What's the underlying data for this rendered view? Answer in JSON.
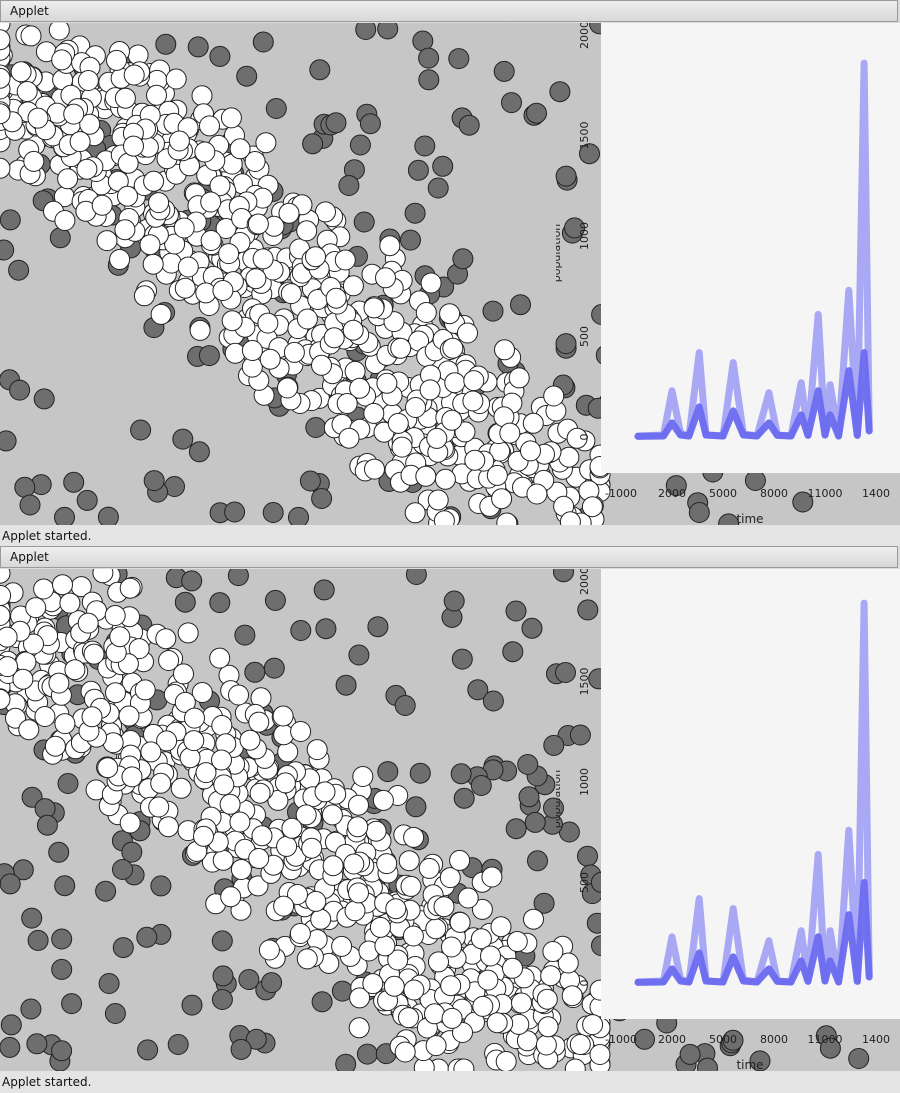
{
  "applets": [
    {
      "title": "Applet",
      "status": "Applet started.",
      "plot": {
        "xlabel": "time",
        "ylabel": "population",
        "x_ticks": [
          "-1000",
          "2000",
          "5000",
          "8000",
          "11000",
          "1400"
        ],
        "y_ticks": [
          "0",
          "500",
          "1000",
          "1500",
          "2000"
        ]
      }
    },
    {
      "title": "Applet",
      "status": "Applet started.",
      "plot": {
        "xlabel": "time",
        "ylabel": "population",
        "x_ticks": [
          "-1000",
          "2000",
          "5000",
          "8000",
          "11000",
          "1400"
        ],
        "y_ticks": [
          "0",
          "500",
          "1000",
          "1500",
          "2000"
        ]
      }
    }
  ],
  "colors": {
    "prey": "#ffffff",
    "predator": "#6e6e6e",
    "prey_series": "#9a9af5",
    "predator_series": "#6a6af0",
    "field": "#c6c6c6",
    "plot_bg": "#f5f5f5"
  },
  "chart_data": [
    {
      "type": "line",
      "xlabel": "time",
      "ylabel": "population",
      "xlim": [
        -1000,
        14000
      ],
      "ylim": [
        0,
        2000
      ],
      "series": [
        {
          "x": [
            0,
            1500,
            2000,
            2500,
            3000,
            3600,
            4000,
            5000,
            5600,
            6200,
            7000,
            7700,
            8200,
            9000,
            9600,
            10000,
            10600,
            11000,
            11300,
            11800,
            12400,
            12900,
            13300,
            13600
          ],
          "values": [
            5,
            10,
            230,
            20,
            5,
            420,
            10,
            5,
            370,
            15,
            5,
            220,
            10,
            5,
            270,
            10,
            610,
            10,
            260,
            5,
            730,
            10,
            1860,
            40
          ]
        },
        {
          "x": [
            0,
            1500,
            2000,
            2500,
            3000,
            3600,
            4000,
            5000,
            5600,
            6200,
            7000,
            7700,
            8200,
            9000,
            9600,
            10000,
            10600,
            11000,
            11300,
            11800,
            12400,
            12900,
            13300,
            13600
          ],
          "values": [
            3,
            5,
            70,
            10,
            5,
            150,
            10,
            5,
            130,
            10,
            5,
            70,
            8,
            5,
            110,
            8,
            230,
            10,
            110,
            5,
            330,
            8,
            420,
            30
          ]
        }
      ]
    },
    {
      "type": "line",
      "xlabel": "time",
      "ylabel": "population",
      "xlim": [
        -1000,
        14000
      ],
      "ylim": [
        0,
        2000
      ],
      "series": [
        {
          "x": [
            0,
            1500,
            2000,
            2500,
            3000,
            3600,
            4000,
            5000,
            5600,
            6200,
            7000,
            7700,
            8200,
            9000,
            9600,
            10000,
            10600,
            11000,
            11300,
            11800,
            12400,
            12900,
            13300,
            13600
          ],
          "values": [
            5,
            10,
            230,
            20,
            5,
            420,
            10,
            5,
            370,
            15,
            5,
            210,
            10,
            5,
            260,
            10,
            640,
            10,
            260,
            5,
            760,
            10,
            1890,
            40
          ]
        },
        {
          "x": [
            0,
            1500,
            2000,
            2500,
            3000,
            3600,
            4000,
            5000,
            5600,
            6200,
            7000,
            7700,
            8200,
            9000,
            9600,
            10000,
            10600,
            11000,
            11300,
            11800,
            12400,
            12900,
            13300,
            13600
          ],
          "values": [
            3,
            5,
            70,
            10,
            5,
            150,
            10,
            5,
            130,
            10,
            5,
            70,
            8,
            5,
            110,
            8,
            230,
            10,
            110,
            5,
            340,
            8,
            500,
            30
          ]
        }
      ]
    }
  ]
}
